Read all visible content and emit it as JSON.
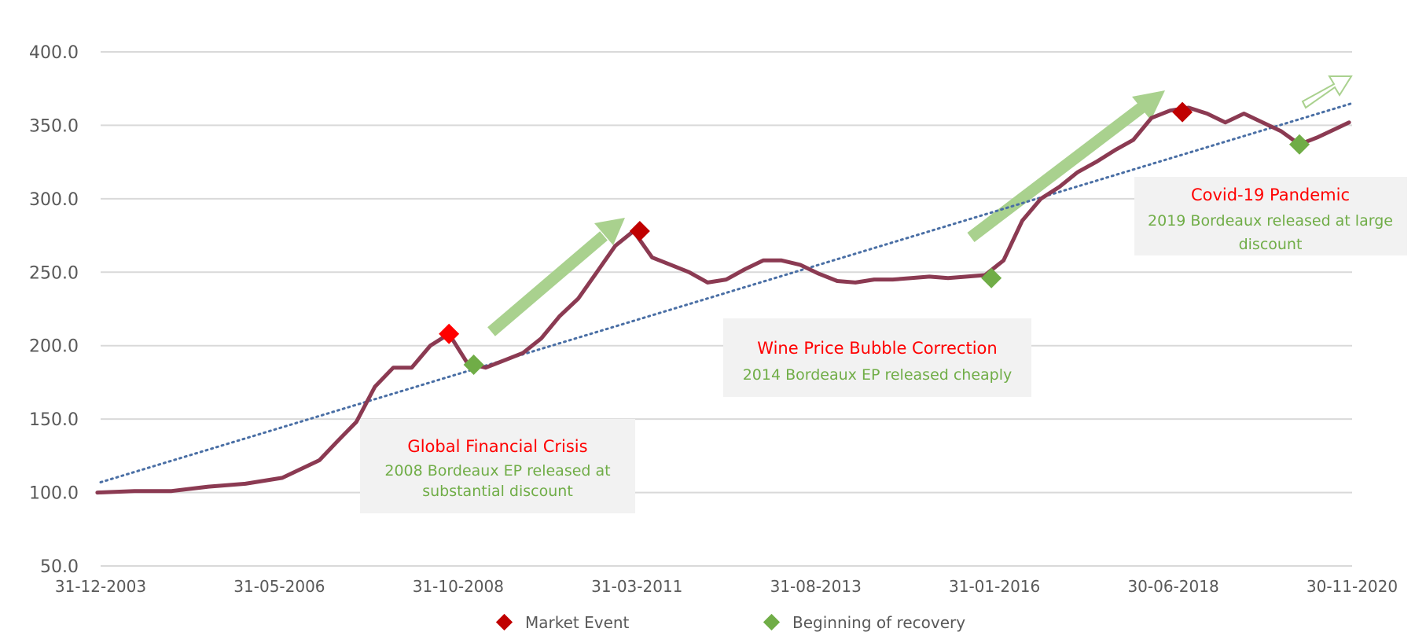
{
  "chart_data": {
    "type": "line",
    "title": "",
    "xlabel": "",
    "ylabel": "",
    "x_start": "31-12-2003",
    "x_end": "30-11-2020",
    "x_tick_labels": [
      "31-12-2003",
      "31-05-2006",
      "31-10-2008",
      "31-03-2011",
      "31-08-2013",
      "31-01-2016",
      "30-06-2018",
      "30-11-2020"
    ],
    "y_tick_labels": [
      "50.0",
      "100.0",
      "150.0",
      "200.0",
      "250.0",
      "300.0",
      "350.0",
      "400.0"
    ],
    "ylim": [
      50,
      400
    ],
    "grid": "horizontal",
    "series": [
      {
        "color": "#8B3A52",
        "x": [
          "2003-12",
          "2004-06",
          "2004-12",
          "2005-06",
          "2005-12",
          "2006-06",
          "2006-12",
          "2007-03",
          "2007-06",
          "2007-09",
          "2007-12",
          "2008-03",
          "2008-06",
          "2008-09",
          "2008-12",
          "2009-03",
          "2009-06",
          "2009-09",
          "2009-12",
          "2010-03",
          "2010-06",
          "2010-09",
          "2010-12",
          "2011-03",
          "2011-06",
          "2011-09",
          "2011-12",
          "2012-03",
          "2012-06",
          "2012-09",
          "2012-12",
          "2013-03",
          "2013-06",
          "2013-09",
          "2013-12",
          "2014-03",
          "2014-06",
          "2014-09",
          "2014-12",
          "2015-03",
          "2015-06",
          "2015-09",
          "2015-12",
          "2016-03",
          "2016-06",
          "2016-09",
          "2016-12",
          "2017-03",
          "2017-06",
          "2017-09",
          "2017-12",
          "2018-03",
          "2018-06",
          "2018-09",
          "2018-12",
          "2019-03",
          "2019-06",
          "2019-09",
          "2019-12",
          "2020-03",
          "2020-06",
          "2020-09",
          "2020-11"
        ],
        "values": [
          100,
          101,
          101,
          104,
          106,
          110,
          122,
          135,
          148,
          172,
          185,
          185,
          200,
          208,
          188,
          185,
          190,
          195,
          205,
          220,
          232,
          250,
          268,
          278,
          260,
          255,
          250,
          243,
          245,
          252,
          258,
          258,
          255,
          249,
          244,
          243,
          245,
          245,
          246,
          247,
          246,
          247,
          248,
          258,
          285,
          300,
          308,
          318,
          325,
          333,
          340,
          355,
          360,
          362,
          358,
          352,
          358,
          352,
          346,
          337,
          342,
          348,
          352
        ]
      }
    ],
    "trend_line": {
      "start_value": 107,
      "end_value": 365,
      "color": "#4A6FA5"
    },
    "markers": [
      {
        "type": "market_event",
        "x": "2008-09",
        "y": 208
      },
      {
        "type": "recovery",
        "x": "2009-01",
        "y": 187
      },
      {
        "type": "market_event",
        "x": "2011-04",
        "y": 278
      },
      {
        "type": "recovery",
        "x": "2016-01",
        "y": 246
      },
      {
        "type": "market_event",
        "x": "2018-08",
        "y": 359
      },
      {
        "type": "recovery",
        "x": "2020-03",
        "y": 337
      }
    ],
    "legend": {
      "position": "bottom",
      "items": [
        {
          "key": "market_event",
          "label": "Market Event",
          "color": "#C00000"
        },
        {
          "key": "recovery",
          "label": "Beginning of recovery",
          "color": "#70AD47"
        }
      ]
    },
    "annotations": [
      {
        "title": "Global Financial Crisis",
        "subtitle": [
          "2008 Bordeaux EP released at",
          "substantial discount"
        ]
      },
      {
        "title": "Wine Price Bubble Correction",
        "subtitle": [
          "2014 Bordeaux EP released cheaply"
        ]
      },
      {
        "title": "Covid-19 Pandemic",
        "subtitle": [
          "2019 Bordeaux  released at large",
          "discount"
        ]
      }
    ],
    "colors": {
      "line": "#8B3A52",
      "trend": "#4A6FA5",
      "market_event": "#C00000",
      "market_event_bright": "#FF0000",
      "recovery": "#70AD47",
      "arrow": "#A9D18E",
      "annotation_title": "#FF0000",
      "annotation_subtitle": "#70AD47",
      "annotation_bg": "#F2F2F2",
      "grid": "#D9D9D9",
      "axis_text": "#595959"
    }
  }
}
